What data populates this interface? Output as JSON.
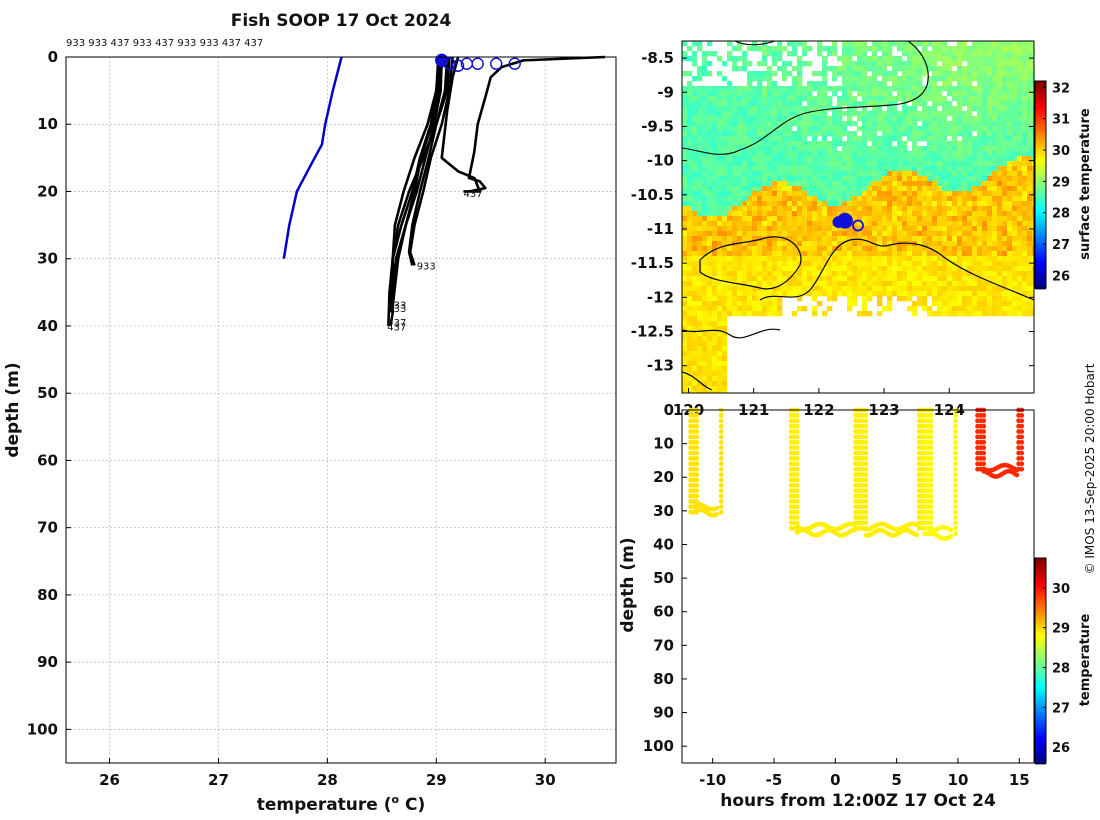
{
  "chart_data": [
    {
      "type": "line",
      "title": "Fish SOOP 17 Oct 2024",
      "xlabel": "temperature (",
      "xlabel_sup": "o",
      "xlabel_end": " C)",
      "ylabel": "depth (m)",
      "xlim": [
        25.6,
        30.65
      ],
      "ylim": [
        105,
        0
      ],
      "xticks": [
        26,
        27,
        28,
        29,
        30
      ],
      "yticks": [
        0,
        10,
        20,
        30,
        40,
        50,
        60,
        70,
        80,
        90,
        100
      ],
      "top_label": "933 933 437 933 437 933 933 437 437",
      "drop_labels": [
        {
          "text": "437",
          "x": 29.25,
          "y": 20.2
        },
        {
          "text": "933",
          "x": 28.82,
          "y": 31.0
        },
        {
          "text": "933",
          "x": 28.55,
          "y": 36.8
        },
        {
          "text": "933",
          "x": 28.55,
          "y": 37.3
        },
        {
          "text": "437",
          "x": 28.55,
          "y": 39.4
        },
        {
          "text": "437",
          "x": 28.55,
          "y": 40.1
        }
      ],
      "series": [
        {
          "name": "climatology",
          "color": "#0000cc",
          "x": [
            28.13,
            28.05,
            27.98,
            27.95,
            27.85,
            27.72,
            27.65,
            27.6
          ],
          "y": [
            0,
            5,
            10,
            13,
            16,
            20,
            25,
            30
          ]
        },
        {
          "name": "profiles",
          "color": "#000000",
          "profiles": [
            {
              "x": [
                29.05,
                29.04,
                28.98,
                28.9,
                28.82,
                28.72,
                28.63,
                28.6,
                28.6,
                28.58
              ],
              "y": [
                0,
                5,
                10,
                15,
                20,
                25,
                30,
                35,
                38,
                40
              ]
            },
            {
              "x": [
                29.02,
                29.0,
                28.95,
                28.85,
                28.78,
                28.68,
                28.6,
                28.57,
                28.56
              ],
              "y": [
                0,
                5,
                10,
                15,
                20,
                25,
                30,
                35,
                40
              ]
            },
            {
              "x": [
                29.1,
                29.08,
                29.0,
                28.93,
                28.85,
                28.78,
                28.75,
                28.78
              ],
              "y": [
                0,
                5,
                10,
                15,
                20,
                25,
                29,
                31
              ]
            },
            {
              "x": [
                29.04,
                29.0,
                28.92,
                28.8,
                28.7,
                28.62,
                28.6,
                28.6
              ],
              "y": [
                0,
                5,
                10,
                15,
                20,
                25,
                30,
                37
              ]
            },
            {
              "x": [
                29.12,
                29.1,
                29.0,
                28.88,
                28.75,
                28.65,
                28.6,
                28.58
              ],
              "y": [
                0,
                5,
                10,
                15,
                20,
                25,
                30,
                38
              ]
            },
            {
              "x": [
                29.06,
                29.02,
                28.96,
                28.86,
                28.8,
                28.72,
                28.65,
                28.6
              ],
              "y": [
                0,
                5,
                10,
                15,
                20,
                25,
                30,
                37
              ]
            },
            {
              "x": [
                29.15,
                29.12,
                29.05,
                28.95,
                28.88,
                28.8,
                28.76,
                28.8
              ],
              "y": [
                0,
                5,
                10,
                15,
                20,
                25,
                29,
                31
              ]
            },
            {
              "x": [
                29.2,
                29.15,
                29.1,
                29.05,
                29.2,
                29.35,
                29.4,
                29.25
              ],
              "y": [
                0,
                3,
                8,
                15,
                17,
                18,
                20,
                20
              ]
            },
            {
              "x": [
                30.55,
                29.8,
                29.6,
                29.5,
                29.45,
                29.38,
                29.35,
                29.3,
                29.4,
                29.45,
                29.3
              ],
              "y": [
                0,
                0.5,
                1.5,
                3,
                6,
                10,
                14,
                18,
                18.5,
                19.5,
                20
              ]
            }
          ]
        },
        {
          "name": "surface",
          "color": "#1010cc",
          "x": [
            29.05,
            29.12,
            29.2,
            29.28,
            29.38,
            29.55,
            29.72
          ],
          "y": [
            0.5,
            1,
            1.3,
            1,
            1,
            1,
            1
          ]
        }
      ]
    },
    {
      "type": "heatmap",
      "colorbar_label": "surface temperature",
      "clim": [
        25.6,
        32.2
      ],
      "colorbar_ticks": [
        26,
        27,
        28,
        29,
        30,
        31,
        32
      ],
      "xlim": [
        119.9,
        125.3
      ],
      "ylim": [
        -13.4,
        -8.25
      ],
      "xticks": [
        120,
        121,
        122,
        123,
        124
      ],
      "yticks": [
        -8.5,
        -9,
        -9.5,
        -10,
        -10.5,
        -11,
        -11.5,
        -12,
        -12.5,
        -13
      ],
      "ship_track": [
        {
          "lon": 122.3,
          "lat": -10.9
        },
        {
          "lon": 122.4,
          "lat": -10.88
        },
        {
          "lon": 122.6,
          "lat": -10.95
        }
      ]
    },
    {
      "type": "scatter",
      "colorbar_label": "temperature",
      "clim": [
        25.6,
        30.75
      ],
      "colorbar_ticks": [
        26,
        27,
        28,
        29,
        30
      ],
      "xlabel": "hours from 12:00Z 17 Oct 24",
      "ylabel": "depth (m)",
      "xlim": [
        -12.5,
        16.2
      ],
      "ylim": [
        105,
        0
      ],
      "xticks": [
        -10,
        -5,
        0,
        5,
        10,
        15
      ],
      "yticks": [
        0,
        10,
        20,
        30,
        40,
        50,
        60,
        70,
        80,
        90,
        100
      ],
      "casts": [
        {
          "t0": -11.8,
          "t1": -9.3,
          "bottom": 30.5,
          "temp": 28.95
        },
        {
          "t0": -3.6,
          "t1": 1.9,
          "bottom": 36.5,
          "temp": 28.9
        },
        {
          "t0": 2.0,
          "t1": 7.1,
          "bottom": 36.5,
          "temp": 28.9
        },
        {
          "t0": 7.3,
          "t1": 9.8,
          "bottom": 37.5,
          "temp": 28.85
        },
        {
          "t0": 11.6,
          "t1": 15.2,
          "bottom": 19,
          "temp": 29.9
        }
      ]
    }
  ],
  "credit": "© IMOS 13-Sep-2025 20:00 Hobart"
}
